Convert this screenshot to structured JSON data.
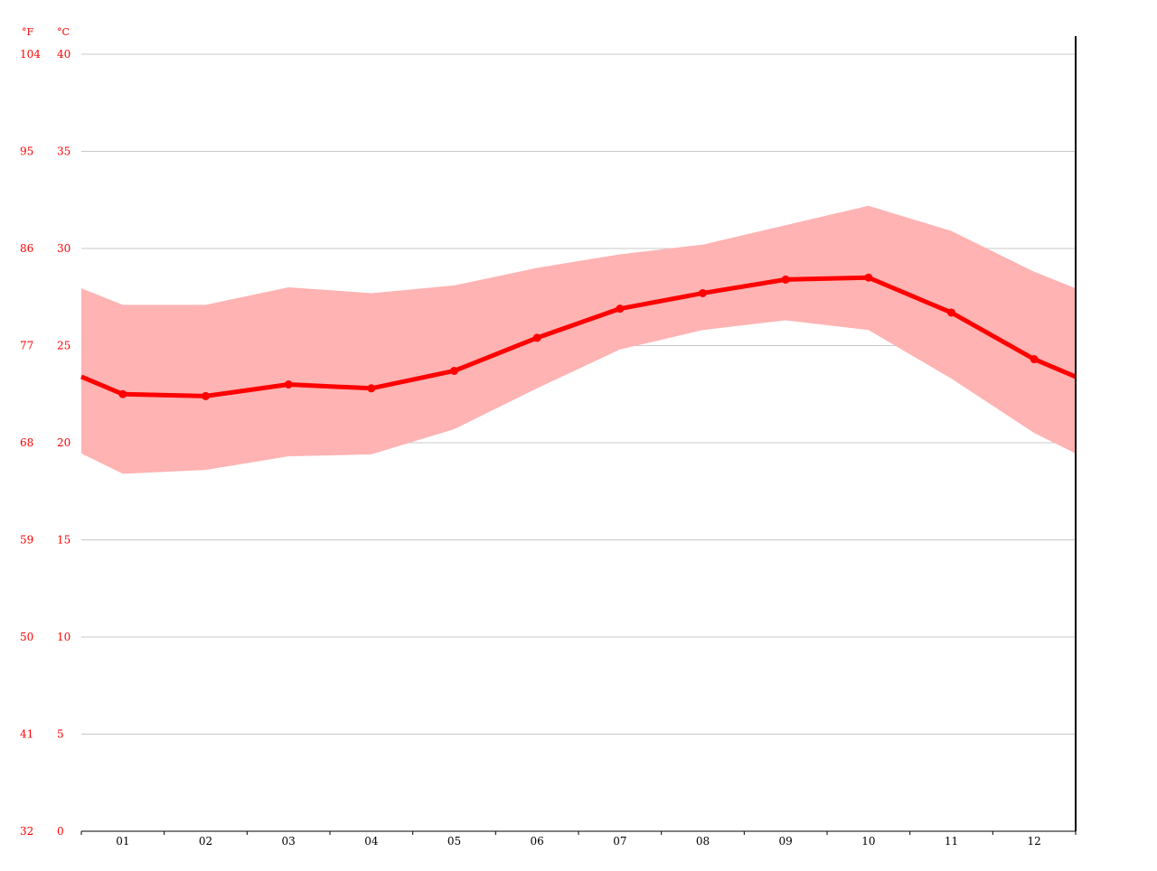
{
  "chart_data": {
    "type": "line",
    "title": "",
    "xlabel": "",
    "ylabel": "",
    "unit_labels": {
      "fahrenheit": "°F",
      "celsius": "°C"
    },
    "categories": [
      "01",
      "02",
      "03",
      "04",
      "05",
      "06",
      "07",
      "08",
      "09",
      "10",
      "11",
      "12"
    ],
    "y_ticks_celsius": [
      0,
      5,
      10,
      15,
      20,
      25,
      30,
      35,
      40
    ],
    "y_ticks_fahrenheit": [
      32,
      41,
      50,
      59,
      68,
      77,
      86,
      95,
      104
    ],
    "ylim": [
      0,
      40
    ],
    "grid": true,
    "colors": {
      "line": "#ff0000",
      "band": "#ffb3b3",
      "grid": "#c8c8c8",
      "axis": "#000000",
      "y_tick_text": "#ff0000",
      "x_tick_text": "#000000"
    },
    "series": [
      {
        "values": [
          22.5,
          22.4,
          23.0,
          22.8,
          23.7,
          25.4,
          26.9,
          27.7,
          28.4,
          28.5,
          26.7,
          24.3
        ]
      }
    ],
    "range_band": {
      "max": [
        27.1,
        27.1,
        28.0,
        27.7,
        28.1,
        29.0,
        29.7,
        30.2,
        31.2,
        32.2,
        30.9,
        28.8
      ],
      "min": [
        18.4,
        18.6,
        19.3,
        19.4,
        20.7,
        22.8,
        24.8,
        25.8,
        26.3,
        25.8,
        23.3,
        20.5
      ]
    }
  }
}
